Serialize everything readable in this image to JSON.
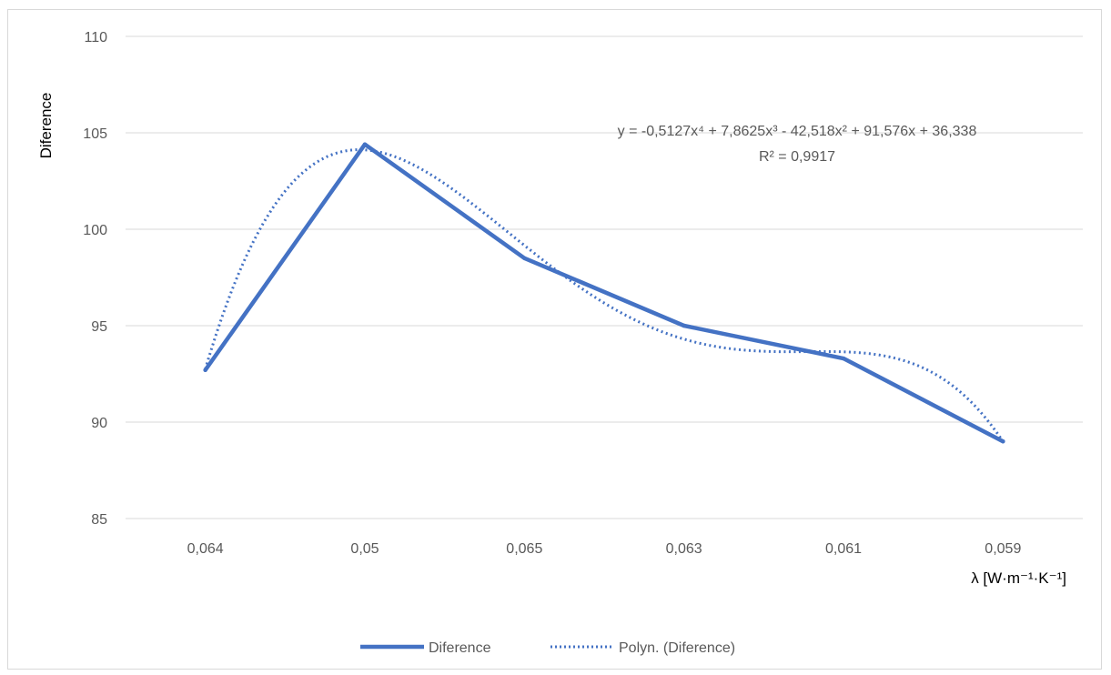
{
  "chart_data": {
    "type": "line",
    "title": "",
    "xlabel": "λ [W·m⁻¹·K⁻¹]",
    "ylabel": "Diference",
    "categories": [
      "0,064",
      "0,05",
      "0,065",
      "0,063",
      "0,061",
      "0,059"
    ],
    "ylim": [
      85,
      110
    ],
    "yticks": [
      85,
      90,
      95,
      100,
      105,
      110
    ],
    "grid": true,
    "legend_position": "bottom",
    "series": [
      {
        "name": "Diference",
        "values": [
          92.7,
          104.4,
          98.5,
          95.0,
          93.3,
          89.0
        ],
        "color": "#4472C4",
        "style": "solid"
      },
      {
        "name": "Polyn. (Diference)",
        "trendline": "polynomial order 4",
        "coefficients": [
          -0.5127,
          7.8625,
          -42.518,
          91.576,
          36.338
        ],
        "color": "#4472C4",
        "style": "dotted"
      }
    ],
    "annotation": {
      "equation": "y = -0,5127x⁴ + 7,8625x³ - 42,518x² + 91,576x + 36,338",
      "r_squared": "R² = 0,9917"
    }
  }
}
